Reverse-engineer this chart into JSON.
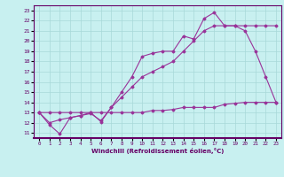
{
  "xlabel": "Windchill (Refroidissement éolien,°C)",
  "bg_color": "#c8f0f0",
  "line_color": "#993399",
  "xlim": [
    -0.5,
    23.5
  ],
  "ylim": [
    10.5,
    23.5
  ],
  "yticks": [
    11,
    12,
    13,
    14,
    15,
    16,
    17,
    18,
    19,
    20,
    21,
    22,
    23
  ],
  "xticks": [
    0,
    1,
    2,
    3,
    4,
    5,
    6,
    7,
    8,
    9,
    10,
    11,
    12,
    13,
    14,
    15,
    16,
    17,
    18,
    19,
    20,
    21,
    22,
    23
  ],
  "line1_x": [
    0,
    1,
    2,
    3,
    4,
    5,
    6,
    7,
    8,
    9,
    10,
    11,
    12,
    13,
    14,
    15,
    16,
    17,
    18,
    19,
    20,
    21,
    22,
    23
  ],
  "line1_y": [
    13.0,
    11.8,
    10.9,
    12.5,
    12.7,
    13.0,
    12.1,
    13.5,
    15.0,
    16.5,
    18.5,
    18.8,
    19.0,
    19.0,
    20.5,
    20.2,
    22.2,
    22.8,
    21.5,
    21.5,
    21.0,
    19.0,
    16.5,
    14.0
  ],
  "line2_x": [
    0,
    1,
    2,
    3,
    4,
    5,
    6,
    7,
    8,
    9,
    10,
    11,
    12,
    13,
    14,
    15,
    16,
    17,
    18,
    19,
    20,
    21,
    22,
    23
  ],
  "line2_y": [
    13.0,
    12.0,
    12.3,
    12.5,
    12.7,
    12.9,
    12.2,
    13.5,
    14.5,
    15.5,
    16.5,
    17.0,
    17.5,
    18.0,
    19.0,
    20.0,
    21.0,
    21.5,
    21.5,
    21.5,
    21.5,
    21.5,
    21.5,
    21.5
  ],
  "line3_x": [
    0,
    1,
    2,
    3,
    4,
    5,
    6,
    7,
    8,
    9,
    10,
    11,
    12,
    13,
    14,
    15,
    16,
    17,
    18,
    19,
    20,
    21,
    22,
    23
  ],
  "line3_y": [
    13.0,
    13.0,
    13.0,
    13.0,
    13.0,
    13.0,
    13.0,
    13.0,
    13.0,
    13.0,
    13.0,
    13.2,
    13.2,
    13.3,
    13.5,
    13.5,
    13.5,
    13.5,
    13.8,
    13.9,
    14.0,
    14.0,
    14.0,
    14.0
  ]
}
